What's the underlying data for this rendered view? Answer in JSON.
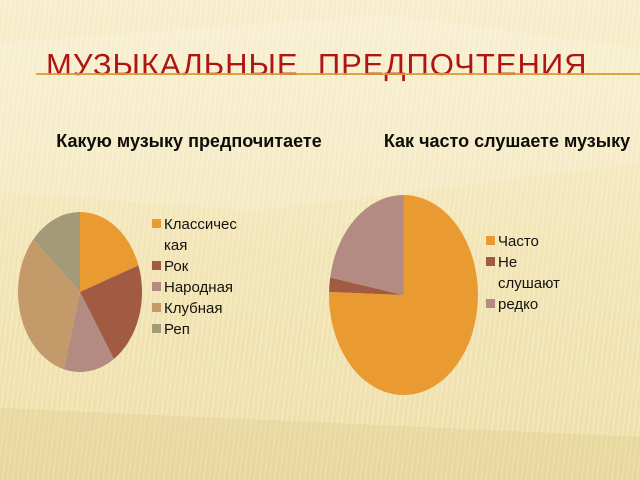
{
  "slide": {
    "title": "МУЗЫКАЛЬНЫЕ  ПРЕДПОЧТЕНИЯ",
    "title_color": "#AE1612",
    "underline_color": "#D89B33",
    "background_color": "#F2E4B4"
  },
  "chart_data": [
    {
      "type": "pie",
      "title": "Какую музыку предпочитаете",
      "legend_position": "right",
      "start_angle_deg": 0,
      "categories": [
        "Классическая",
        "Рок",
        "Народная",
        "Клубная",
        "Реп"
      ],
      "values": [
        19.6,
        21.2,
        13.4,
        32.2,
        13.6
      ],
      "unit": "percent-estimated-from-angles",
      "colors": [
        "#E99B32",
        "#A05B42",
        "#B48B82",
        "#C49A6A",
        "#A39B77"
      ],
      "legend_labels": [
        "Классичес\nкая",
        "Рок",
        "Народная",
        "Клубная",
        "Реп"
      ]
    },
    {
      "type": "pie",
      "title": "Как часто слушаете музыку",
      "legend_position": "right",
      "start_angle_deg": 0,
      "categories": [
        "Часто",
        "Не слушают",
        "редко"
      ],
      "values": [
        75.5,
        2.3,
        22.2
      ],
      "unit": "percent-estimated-from-angles",
      "colors": [
        "#E99B32",
        "#A05B42",
        "#B48B82"
      ],
      "legend_labels": [
        "Часто",
        "Не\nслушают",
        "редко"
      ]
    }
  ]
}
